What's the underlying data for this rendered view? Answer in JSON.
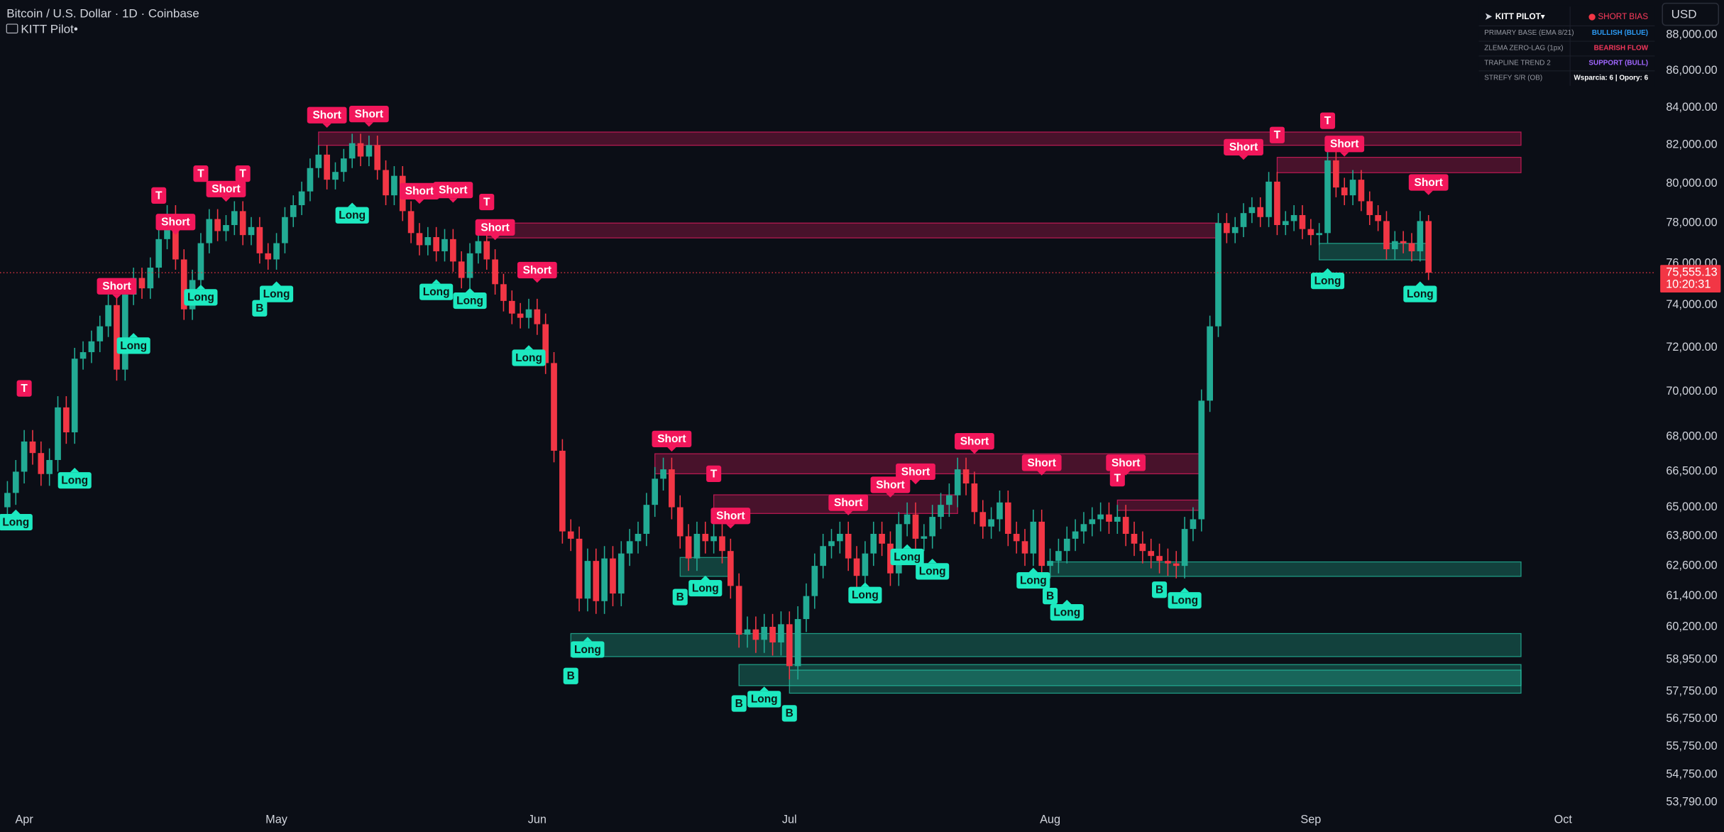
{
  "header": {
    "symbol": "Bitcoin / U.S. Dollar · 1D · Coinbase",
    "indicator": "KITT Pilot•"
  },
  "currency_button": "USD",
  "panel": {
    "rows": [
      {
        "label": "KITT PILOT▾",
        "value": "SHORT BIAS",
        "color": "#ff3b5c"
      },
      {
        "label": "PRIMARY BASE (EMA 8/21)",
        "value": "BULLISH (BLUE)",
        "color": "#2b9af3"
      },
      {
        "label": "ZLEMA ZERO-LAG (1px)",
        "value": "BEARISH FLOW",
        "color": "#f2365a"
      },
      {
        "label": "TRAPLINE TREND 2",
        "value": "SUPPORT (BULL)",
        "color": "#a066ff"
      },
      {
        "label": "STREFY S/R (OB)",
        "value": "Wsparcia: 6 | Opory: 6",
        "color": "#ffffff"
      }
    ]
  },
  "chart_data": {
    "type": "candlestick",
    "up_color": "#22ab94",
    "down_color": "#f23645",
    "log": true,
    "grid": false,
    "ylim": [
      53600,
      90000
    ],
    "yticks": [
      {
        "value": 88000,
        "label": "88,000.00"
      },
      {
        "value": 86000,
        "label": "86,000.00"
      },
      {
        "value": 84000,
        "label": "84,000.00"
      },
      {
        "value": 82000,
        "label": "82,000.00"
      },
      {
        "value": 80000,
        "label": "80,000.00"
      },
      {
        "value": 78000,
        "label": "78,000.00"
      },
      {
        "value": 76000,
        "label": "76,000.00"
      },
      {
        "value": 74000,
        "label": "74,000.00"
      },
      {
        "value": 72000,
        "label": "72,000.00"
      },
      {
        "value": 70000,
        "label": "70,000.00"
      },
      {
        "value": 68000,
        "label": "68,000.00"
      },
      {
        "value": 66500,
        "label": "66,500.00"
      },
      {
        "value": 65000,
        "label": "65,000.00"
      },
      {
        "value": 63800,
        "label": "63,800.00"
      },
      {
        "value": 62600,
        "label": "62,600.00"
      },
      {
        "value": 61400,
        "label": "61,400.00"
      },
      {
        "value": 60200,
        "label": "60,200.00"
      },
      {
        "value": 58950,
        "label": "58,950.00"
      },
      {
        "value": 57750,
        "label": "57,750.00"
      },
      {
        "value": 56750,
        "label": "56,750.00"
      },
      {
        "value": 55750,
        "label": "55,750.00"
      },
      {
        "value": 54750,
        "label": "54,750.00"
      },
      {
        "value": 53790,
        "label": "53,790.00"
      }
    ],
    "xlim": [
      -0.88,
      195.9
    ],
    "xticks": [
      {
        "value": 2,
        "label": "Apr"
      },
      {
        "value": 32,
        "label": "May"
      },
      {
        "value": 63,
        "label": "Jun"
      },
      {
        "value": 93,
        "label": "Jul"
      },
      {
        "value": 124,
        "label": "Aug"
      },
      {
        "value": 155,
        "label": "Sep"
      },
      {
        "value": 185,
        "label": "Oct"
      }
    ],
    "open": [
      65000,
      65600,
      66500,
      67800,
      67300,
      66400,
      67000,
      69300,
      68200,
      71500,
      71800,
      72300,
      73000,
      74000,
      71000,
      74500,
      75300,
      74800,
      75800,
      77200,
      78400,
      76200,
      73800,
      75200,
      77000,
      78200,
      77600,
      77900,
      78600,
      77400,
      77800,
      76500,
      76200,
      77000,
      78300,
      78900,
      79600,
      80800,
      81500,
      80200,
      80600,
      81300,
      82100,
      81400,
      82000,
      80700,
      79400,
      80400,
      78600,
      77500,
      76900,
      77300,
      76600,
      77200,
      76100,
      75300,
      76500,
      77100,
      76200,
      75000,
      74200,
      73600,
      73400,
      73800,
      73100,
      71300,
      67400,
      64000,
      63700,
      61300,
      62800,
      61200,
      62900,
      61500,
      63100,
      63600,
      63900,
      65100,
      66200,
      66600,
      65000,
      63800,
      62900,
      63900,
      63600,
      63800,
      63200,
      61800,
      59900,
      60100,
      59700,
      60200,
      59600,
      60300,
      58700,
      60500,
      61400,
      62600,
      63400,
      63600,
      63900,
      62900,
      62200,
      63100,
      63900,
      63500,
      62300,
      64300,
      64700,
      63700,
      63800,
      64600,
      65100,
      65500,
      66600,
      66000,
      64800,
      64200,
      64500,
      65200,
      63900,
      63600,
      63100,
      64400,
      62600,
      62800,
      63200,
      63700,
      64000,
      64300,
      64500,
      64700,
      64400,
      64600,
      63900,
      63500,
      63200,
      63000,
      62800,
      62700,
      62600,
      64100,
      64500,
      69600,
      73000,
      78000,
      77500,
      77800,
      78500,
      78800,
      78300,
      80100,
      77900,
      78100,
      78400,
      77700,
      77400,
      77500,
      81200,
      79800,
      79400,
      80200,
      79100,
      78400,
      78100,
      76700,
      77100,
      77000,
      76600,
      78100
    ],
    "high": [
      66100,
      67000,
      68300,
      68300,
      67800,
      67500,
      69800,
      69800,
      72000,
      72300,
      72800,
      73500,
      74500,
      74500,
      75000,
      75800,
      75800,
      76300,
      77700,
      78900,
      78900,
      76700,
      75700,
      77500,
      78700,
      78700,
      78400,
      79100,
      79100,
      78300,
      78300,
      77000,
      77500,
      78800,
      79400,
      80100,
      81300,
      82000,
      82000,
      81100,
      81800,
      82600,
      82600,
      82500,
      82500,
      81200,
      80900,
      80900,
      79100,
      78000,
      77800,
      77800,
      77700,
      77700,
      76600,
      77000,
      77600,
      77600,
      76700,
      75500,
      74700,
      74100,
      74300,
      74300,
      73600,
      71800,
      67900,
      64500,
      64200,
      63300,
      63300,
      63400,
      63400,
      63600,
      64100,
      64400,
      65600,
      66700,
      67100,
      67100,
      65500,
      64300,
      64400,
      64400,
      64300,
      64300,
      63700,
      62300,
      60600,
      60600,
      60700,
      60700,
      60800,
      60800,
      61000,
      61900,
      63100,
      63900,
      64100,
      64400,
      64400,
      63400,
      63600,
      64400,
      64400,
      64000,
      64800,
      65200,
      65200,
      64300,
      65100,
      65600,
      66000,
      67100,
      67100,
      66500,
      65300,
      65000,
      65700,
      65700,
      64400,
      64100,
      64900,
      64900,
      63300,
      63700,
      64200,
      64500,
      64800,
      65000,
      65200,
      65200,
      65100,
      65100,
      64400,
      64000,
      63700,
      63500,
      63300,
      63200,
      64600,
      65000,
      70100,
      73500,
      78500,
      78500,
      78300,
      79000,
      79300,
      79300,
      80600,
      80600,
      78600,
      78900,
      78900,
      78200,
      78000,
      81700,
      81700,
      80300,
      80700,
      80700,
      79600,
      78900,
      78600,
      77600,
      77600,
      77500,
      78600,
      78400
    ],
    "low": [
      64500,
      65100,
      66000,
      66800,
      65900,
      65900,
      66500,
      67700,
      67700,
      71000,
      71300,
      71800,
      72500,
      70500,
      70500,
      74000,
      74300,
      74300,
      75300,
      76700,
      75700,
      73300,
      73300,
      74700,
      76500,
      77100,
      77100,
      77400,
      76900,
      76900,
      76000,
      75700,
      75700,
      76500,
      77800,
      78400,
      79100,
      80300,
      79700,
      79700,
      80100,
      80800,
      80900,
      80900,
      80200,
      78900,
      78900,
      78100,
      77000,
      76400,
      76400,
      76100,
      76100,
      75600,
      74800,
      74800,
      76000,
      75700,
      74500,
      73700,
      73100,
      72900,
      72900,
      72600,
      70800,
      66900,
      63500,
      63200,
      60800,
      60800,
      60700,
      60700,
      61000,
      61000,
      62600,
      63100,
      63400,
      64600,
      65700,
      64500,
      63300,
      62400,
      62400,
      63100,
      63100,
      62700,
      61300,
      59400,
      59400,
      59200,
      59200,
      59100,
      59100,
      58200,
      58200,
      60000,
      60900,
      62100,
      62900,
      63100,
      62400,
      61700,
      61700,
      62600,
      63000,
      61800,
      61800,
      63800,
      63200,
      63200,
      63300,
      64100,
      64600,
      65000,
      65500,
      64300,
      63700,
      63700,
      64000,
      63400,
      63100,
      62600,
      62600,
      62100,
      62100,
      62300,
      62700,
      63200,
      63500,
      63800,
      64000,
      63900,
      63900,
      63400,
      63000,
      62700,
      62500,
      62300,
      62200,
      62100,
      62100,
      63600,
      64000,
      69100,
      72500,
      77000,
      77000,
      77300,
      78000,
      77800,
      77800,
      77400,
      77400,
      77600,
      77200,
      76900,
      76900,
      77000,
      79300,
      78900,
      78900,
      78600,
      77900,
      77600,
      76200,
      76200,
      76500,
      76100,
      76100,
      75200
    ],
    "close": [
      65600,
      66500,
      67800,
      67300,
      66400,
      67000,
      69300,
      68200,
      71500,
      71800,
      72300,
      73000,
      74000,
      71000,
      74500,
      75300,
      74800,
      75800,
      77200,
      78400,
      76200,
      73800,
      75200,
      77000,
      78200,
      77600,
      77900,
      78600,
      77400,
      77800,
      76500,
      76200,
      77000,
      78300,
      78900,
      79600,
      80800,
      81500,
      80200,
      80600,
      81300,
      82100,
      81400,
      82000,
      80700,
      79400,
      80400,
      78600,
      77500,
      76900,
      77300,
      76600,
      77200,
      76100,
      75300,
      76500,
      77100,
      76200,
      75000,
      74200,
      73600,
      73400,
      73800,
      73100,
      71300,
      67400,
      64000,
      63700,
      61300,
      62800,
      61200,
      62900,
      61500,
      63100,
      63600,
      63900,
      65100,
      66200,
      66600,
      65000,
      63800,
      62900,
      63900,
      63600,
      63800,
      63200,
      61800,
      59900,
      60100,
      59700,
      60200,
      59600,
      60300,
      58700,
      60500,
      61400,
      62600,
      63400,
      63600,
      63900,
      62900,
      62200,
      63100,
      63900,
      63500,
      62300,
      64300,
      64700,
      63700,
      63800,
      64600,
      65100,
      65500,
      66600,
      66000,
      64800,
      64200,
      64500,
      65200,
      63900,
      63600,
      63100,
      64400,
      62600,
      62800,
      63200,
      63700,
      64000,
      64300,
      64500,
      64700,
      64400,
      64600,
      63900,
      63500,
      63200,
      63000,
      62800,
      62700,
      62600,
      64100,
      64500,
      69600,
      73000,
      78000,
      77500,
      77800,
      78500,
      78800,
      78300,
      80100,
      77900,
      78100,
      78400,
      77700,
      77400,
      77500,
      81200,
      79800,
      79400,
      80200,
      79100,
      78400,
      78100,
      76700,
      77100,
      77000,
      76600,
      78100,
      75555.13
    ],
    "zones": [
      {
        "start": 37,
        "end": 180,
        "top": 82690,
        "bottom": 81990,
        "color": "#e91e63"
      },
      {
        "start": 57,
        "end": 144,
        "top": 78000,
        "bottom": 77260,
        "color": "#e91e63"
      },
      {
        "start": 77,
        "end": 142,
        "top": 67270,
        "bottom": 66410,
        "color": "#e91e63"
      },
      {
        "start": 84,
        "end": 113,
        "top": 65520,
        "bottom": 64740,
        "color": "#e91e63"
      },
      {
        "start": 132,
        "end": 142,
        "top": 65300,
        "bottom": 64870,
        "color": "#e91e63"
      },
      {
        "start": 151,
        "end": 180,
        "top": 81360,
        "bottom": 80560,
        "color": "#e91e63"
      },
      {
        "start": 80,
        "end": 86,
        "top": 62940,
        "bottom": 62180,
        "color": "#26c6a6"
      },
      {
        "start": 124,
        "end": 180,
        "top": 62760,
        "bottom": 62180,
        "color": "#26c6a6"
      },
      {
        "start": 67,
        "end": 180,
        "top": 59940,
        "bottom": 59060,
        "color": "#26c6a6"
      },
      {
        "start": 87,
        "end": 180,
        "top": 58760,
        "bottom": 57970,
        "color": "#26c6a6"
      },
      {
        "start": 93,
        "end": 180,
        "top": 58550,
        "bottom": 57690,
        "color": "#26c6a6"
      },
      {
        "start": 156,
        "end": 169,
        "top": 76990,
        "bottom": 76180,
        "color": "#26c6a6"
      }
    ],
    "signals": [
      {
        "text": "Short",
        "color": "#f2175b",
        "text_color": "#ffffff",
        "pointer": "down",
        "points": [
          [
            13,
            74900
          ],
          [
            20,
            78050
          ],
          [
            26,
            79720
          ],
          [
            38,
            83590
          ],
          [
            43,
            83650
          ],
          [
            49,
            79610
          ],
          [
            53,
            79670
          ],
          [
            58,
            77780
          ],
          [
            63,
            75680
          ],
          [
            79,
            67910
          ],
          [
            86,
            64640
          ],
          [
            100,
            65190
          ],
          [
            105,
            65940
          ],
          [
            108,
            66500
          ],
          [
            115,
            67810
          ],
          [
            123,
            66880
          ],
          [
            133,
            66880
          ],
          [
            147,
            81890
          ],
          [
            159,
            82060
          ],
          [
            169,
            80060
          ]
        ]
      },
      {
        "text": "Long",
        "color": "#1de9c0",
        "text_color": "#0b1a17",
        "pointer": "up",
        "points": [
          [
            1,
            64380
          ],
          [
            8,
            66130
          ],
          [
            15,
            72100
          ],
          [
            23,
            74370
          ],
          [
            32,
            74530
          ],
          [
            41,
            78390
          ],
          [
            51,
            74630
          ],
          [
            55,
            74210
          ],
          [
            62,
            71540
          ],
          [
            69,
            59330
          ],
          [
            83,
            61710
          ],
          [
            90,
            57470
          ],
          [
            102,
            61440
          ],
          [
            107,
            62960
          ],
          [
            110,
            62380
          ],
          [
            122,
            62020
          ],
          [
            126,
            60760
          ],
          [
            140,
            61230
          ],
          [
            157,
            75160
          ],
          [
            168,
            74530
          ]
        ]
      },
      {
        "text": "T",
        "color": "#f2175b",
        "text_color": "#ffffff",
        "pointer": "none",
        "points": [
          [
            2,
            70150
          ],
          [
            18,
            79390
          ],
          [
            23,
            80510
          ],
          [
            28,
            80510
          ],
          [
            57,
            79060
          ],
          [
            84,
            66410
          ],
          [
            132,
            66220
          ],
          [
            151,
            82530
          ],
          [
            157,
            83290
          ]
        ]
      },
      {
        "text": "B",
        "color": "#1de9c0",
        "text_color": "#0b1a17",
        "pointer": "none",
        "points": [
          [
            30,
            73850
          ],
          [
            67,
            58330
          ],
          [
            80,
            61360
          ],
          [
            87,
            57310
          ],
          [
            93,
            56950
          ],
          [
            124,
            61400
          ],
          [
            137,
            61650
          ]
        ]
      }
    ],
    "last_price": {
      "value": 75555.13,
      "label": "75,555.13"
    },
    "countdown": "10:20:31",
    "last_price_color": "#f23645"
  }
}
